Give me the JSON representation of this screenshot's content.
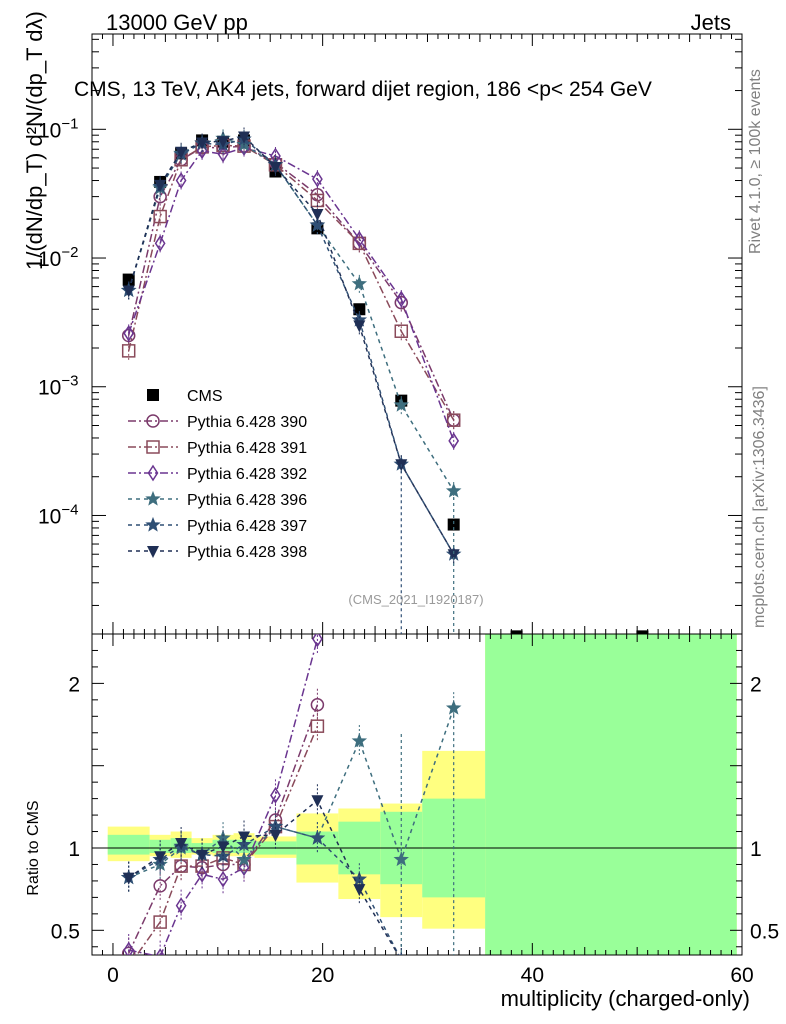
{
  "header": {
    "left": "13000 GeV pp",
    "right": "Jets"
  },
  "side_labels": {
    "rivet": "Rivet 4.1.0, ≥ 100k events",
    "mcplots": "mcplots.cern.ch [arXiv:1306.3436]"
  },
  "watermark": "(CMS_2021_I1920187)",
  "chart_data": [
    {
      "type": "scatter",
      "panel": "main",
      "title": "CMS, 13 TeV, AK4 jets, forward dijet region, 186 <p_T^{jet}< 254 GeV",
      "ylabel": "1/(dN/dp_T) d²N/(dp_T dλ)",
      "xlabel": "multiplicity (charged-only)",
      "xlim": [
        -2,
        60
      ],
      "ylim": [
        1.2e-05,
        0.55
      ],
      "yscale": "log",
      "y_ticks": [
        {
          "v": 0.1,
          "m": "10",
          "e": "−1"
        },
        {
          "v": 0.01,
          "m": "10",
          "e": "−2"
        },
        {
          "v": 0.001,
          "m": "10",
          "e": "−3"
        },
        {
          "v": 0.0001,
          "m": "10",
          "e": "−4"
        }
      ],
      "legend_position": "lower-left",
      "series": [
        {
          "name": "CMS",
          "color": "#000000",
          "marker": "square-filled",
          "dash": "none",
          "x": [
            1.5,
            4.5,
            6.5,
            8.5,
            10.5,
            12.5,
            15.5,
            19.5,
            23.5,
            27.5,
            32.5,
            38.5,
            50.5
          ],
          "y": [
            0.0068,
            0.039,
            0.065,
            0.082,
            0.08,
            0.082,
            0.047,
            0.017,
            0.004,
            0.00078,
            8.5e-05,
            1.15e-05,
            1.15e-05
          ]
        },
        {
          "name": "Pythia 6.428 390",
          "color": "#7b3a6b",
          "marker": "circle-open",
          "dash": "8,3,2,3",
          "x": [
            1.5,
            4.5,
            6.5,
            8.5,
            10.5,
            12.5,
            15.5,
            19.5,
            23.5,
            27.5,
            32.5
          ],
          "y": [
            0.0025,
            0.03,
            0.058,
            0.072,
            0.072,
            0.074,
            0.055,
            0.031,
            0.013,
            0.0045,
            0.00055
          ]
        },
        {
          "name": "Pythia 6.428 391",
          "color": "#8a4a5a",
          "marker": "square-open",
          "dash": "8,3,2,3",
          "x": [
            1.5,
            4.5,
            6.5,
            8.5,
            10.5,
            12.5,
            15.5,
            19.5,
            23.5,
            27.5,
            32.5
          ],
          "y": [
            0.0019,
            0.021,
            0.058,
            0.073,
            0.075,
            0.074,
            0.053,
            0.028,
            0.013,
            0.0027,
            0.00055
          ]
        },
        {
          "name": "Pythia 6.428 392",
          "color": "#6a3590",
          "marker": "diamond-open",
          "dash": "8,3,2,3",
          "x": [
            1.5,
            4.5,
            6.5,
            8.5,
            10.5,
            12.5,
            15.5,
            19.5,
            23.5,
            27.5,
            32.5
          ],
          "y": [
            0.0026,
            0.013,
            0.04,
            0.068,
            0.064,
            0.072,
            0.062,
            0.041,
            0.014,
            0.0048,
            0.00038
          ]
        },
        {
          "name": "Pythia 6.428 396",
          "color": "#3e6e7e",
          "marker": "star-open",
          "dash": "4,4",
          "x": [
            1.5,
            4.5,
            6.5,
            8.5,
            10.5,
            12.5,
            15.5,
            19.5,
            23.5,
            27.5,
            32.5
          ],
          "y": [
            0.0056,
            0.035,
            0.065,
            0.078,
            0.085,
            0.076,
            0.053,
            0.018,
            0.0063,
            0.00072,
            0.000155
          ]
        },
        {
          "name": "Pythia 6.428 397",
          "color": "#2f4f74",
          "marker": "star-open",
          "dash": "4,4",
          "x": [
            1.5,
            4.5,
            6.5,
            8.5,
            10.5,
            12.5,
            15.5,
            19.5,
            23.5,
            27.5,
            32.5
          ],
          "y": [
            0.0056,
            0.036,
            0.064,
            0.078,
            0.076,
            0.084,
            0.053,
            0.018,
            0.0033,
            0.00025,
            5e-05
          ]
        },
        {
          "name": "Pythia 6.428 398",
          "color": "#1f2f55",
          "marker": "triangle-down-filled",
          "dash": "4,4",
          "x": [
            1.5,
            4.5,
            6.5,
            8.5,
            10.5,
            12.5,
            15.5,
            19.5,
            23.5,
            27.5,
            32.5
          ],
          "y": [
            0.0056,
            0.037,
            0.067,
            0.079,
            0.081,
            0.088,
            0.051,
            0.022,
            0.003,
            0.00025,
            5e-05
          ]
        }
      ]
    },
    {
      "type": "scatter",
      "panel": "ratio",
      "ylabel": "Ratio to CMS",
      "xlabel": "multiplicity (charged-only)",
      "xlim": [
        -2,
        60
      ],
      "ylim": [
        0.35,
        2.3
      ],
      "y_ticks": [
        2,
        1,
        0.5
      ],
      "y_tick_labels": [
        "2",
        "1",
        "0.5"
      ],
      "x_ticks": [
        0,
        20,
        40,
        60
      ],
      "x_tick_labels": [
        "0",
        "20",
        "40",
        "60"
      ],
      "reference_line": 1,
      "uncertainty_bands": [
        {
          "x0": -0.5,
          "x1": 3.5,
          "inner": [
            0.96,
            1.08
          ],
          "outer": [
            0.92,
            1.13
          ]
        },
        {
          "x0": 3.5,
          "x1": 5.5,
          "inner": [
            0.97,
            1.05
          ],
          "outer": [
            0.95,
            1.08
          ]
        },
        {
          "x0": 5.5,
          "x1": 7.5,
          "inner": [
            0.97,
            1.06
          ],
          "outer": [
            0.94,
            1.1
          ]
        },
        {
          "x0": 7.5,
          "x1": 9.5,
          "inner": [
            0.98,
            1.03
          ],
          "outer": [
            0.96,
            1.06
          ]
        },
        {
          "x0": 9.5,
          "x1": 11.5,
          "inner": [
            0.97,
            1.05
          ],
          "outer": [
            0.95,
            1.08
          ]
        },
        {
          "x0": 11.5,
          "x1": 13.5,
          "inner": [
            0.97,
            1.05
          ],
          "outer": [
            0.95,
            1.09
          ]
        },
        {
          "x0": 13.5,
          "x1": 17.5,
          "inner": [
            0.96,
            1.04
          ],
          "outer": [
            0.94,
            1.07
          ]
        },
        {
          "x0": 17.5,
          "x1": 21.5,
          "inner": [
            0.9,
            1.1
          ],
          "outer": [
            0.79,
            1.21
          ]
        },
        {
          "x0": 21.5,
          "x1": 25.5,
          "inner": [
            0.84,
            1.16
          ],
          "outer": [
            0.69,
            1.24
          ]
        },
        {
          "x0": 25.5,
          "x1": 29.5,
          "inner": [
            0.78,
            1.22
          ],
          "outer": [
            0.58,
            1.27
          ]
        },
        {
          "x0": 29.5,
          "x1": 35.5,
          "inner": [
            0.7,
            1.3
          ],
          "outer": [
            0.51,
            1.59
          ]
        },
        {
          "x0": 35.5,
          "x1": 59.5,
          "inner": [
            0.0,
            3.0
          ],
          "outer": [
            0.0,
            3.0
          ]
        }
      ],
      "series": [
        {
          "name": "Pythia 6.428 390",
          "x": [
            1.5,
            4.5,
            6.5,
            8.5,
            10.5,
            12.5,
            15.5,
            19.5
          ],
          "y": [
            0.36,
            0.77,
            0.89,
            0.88,
            0.9,
            0.9,
            1.17,
            1.87
          ]
        },
        {
          "name": "Pythia 6.428 391",
          "x": [
            1.5,
            4.5,
            6.5,
            8.5,
            10.5,
            12.5,
            15.5,
            19.5
          ],
          "y": [
            0.28,
            0.55,
            0.89,
            0.89,
            0.94,
            0.9,
            1.13,
            1.74
          ]
        },
        {
          "name": "Pythia 6.428 392",
          "x": [
            1.5,
            4.5,
            6.5,
            8.5,
            10.5,
            12.5,
            15.5,
            19.5
          ],
          "y": [
            0.38,
            0.34,
            0.65,
            0.84,
            0.81,
            0.88,
            1.32,
            2.27
          ]
        },
        {
          "name": "Pythia 6.428 396",
          "x": [
            1.5,
            4.5,
            6.5,
            8.5,
            10.5,
            12.5,
            15.5,
            19.5,
            23.5,
            27.5,
            32.5
          ],
          "y": [
            0.82,
            0.9,
            1.0,
            0.96,
            1.06,
            0.93,
            1.13,
            1.06,
            1.65,
            0.93,
            1.85
          ]
        },
        {
          "name": "Pythia 6.428 397",
          "x": [
            1.5,
            4.5,
            6.5,
            8.5,
            10.5,
            12.5,
            15.5,
            19.5,
            23.5,
            27.5
          ],
          "y": [
            0.82,
            0.93,
            1.01,
            0.96,
            0.95,
            1.02,
            1.13,
            1.06,
            0.81,
            0.32
          ]
        },
        {
          "name": "Pythia 6.428 398",
          "x": [
            1.5,
            4.5,
            6.5,
            8.5,
            10.5,
            12.5,
            15.5,
            19.5,
            23.5,
            27.5
          ],
          "y": [
            0.82,
            0.95,
            1.03,
            0.96,
            1.01,
            1.07,
            1.08,
            1.29,
            0.75,
            0.32
          ]
        }
      ]
    }
  ]
}
